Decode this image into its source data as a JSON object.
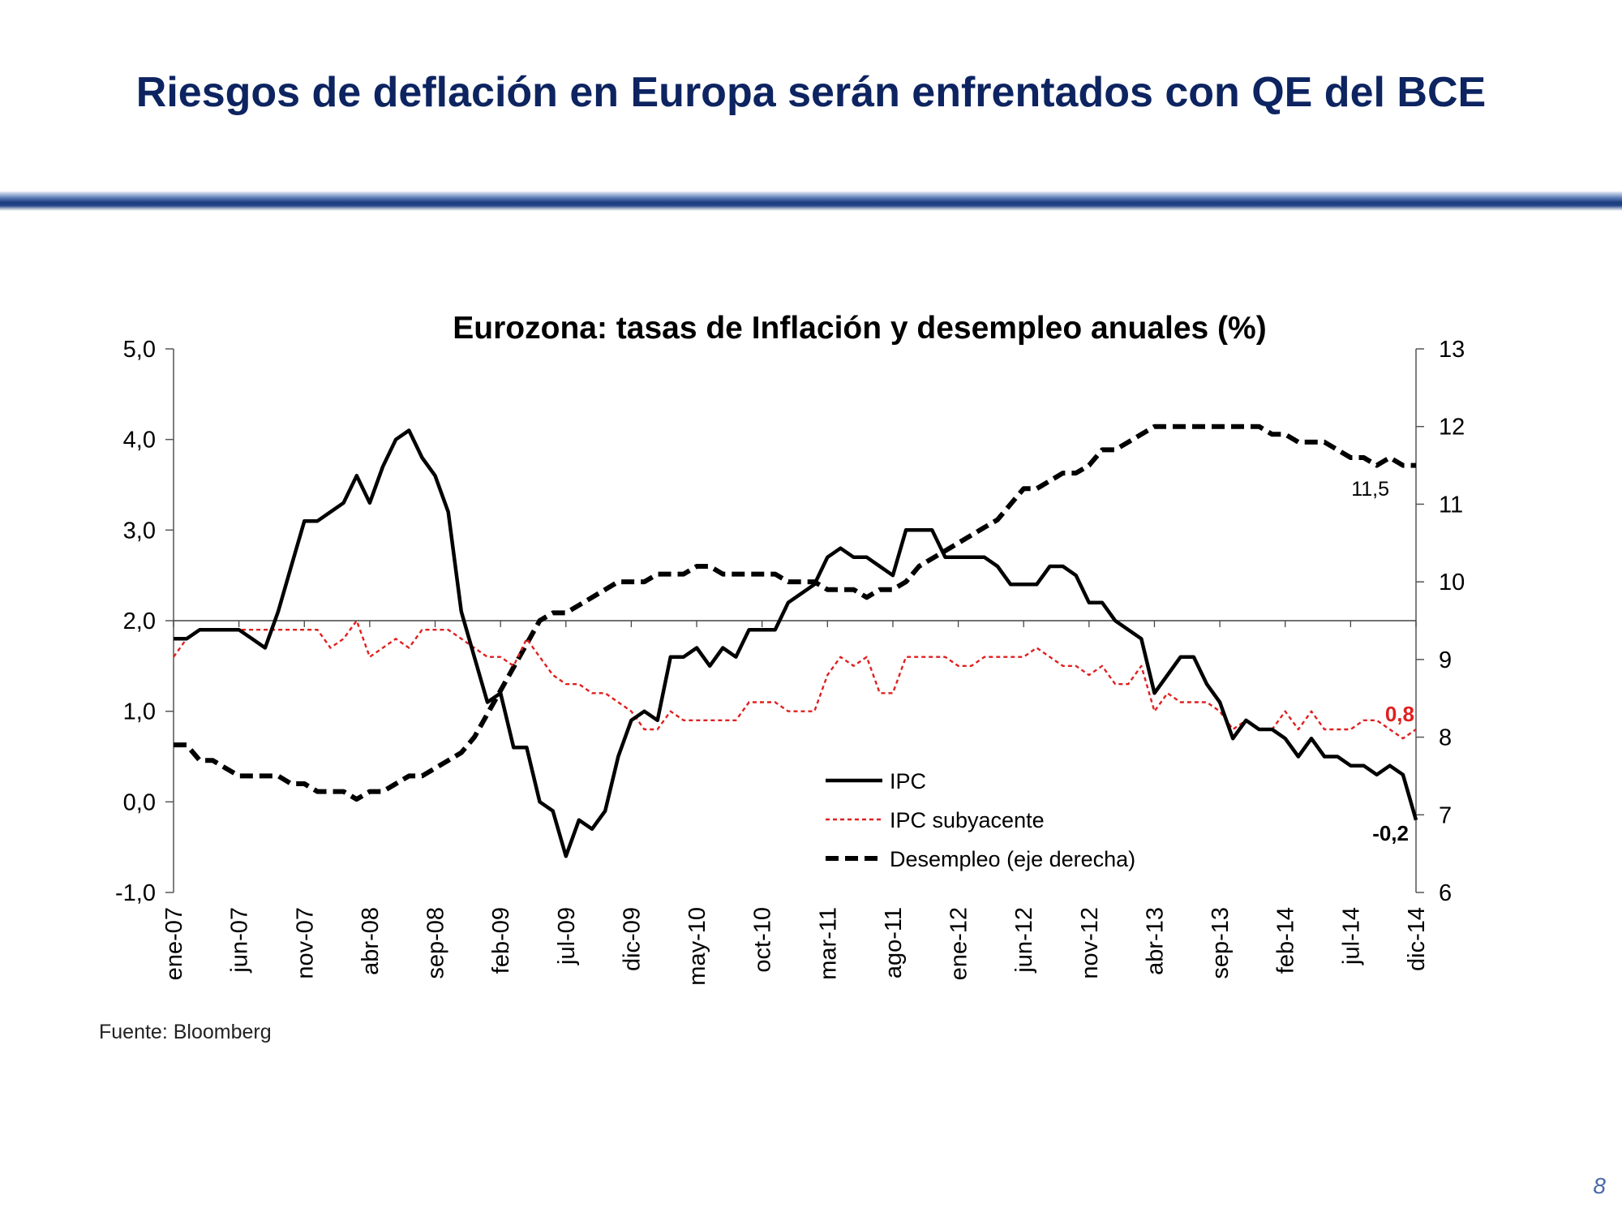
{
  "slide": {
    "title": "Riesgos de deflación en Europa serán enfrentados con QE del BCE",
    "source": "Fuente: Bloomberg",
    "page_number": "8"
  },
  "colors": {
    "title": "#0d2461",
    "ipc": "#000000",
    "ipc_subyacente": "#e02020",
    "desempleo": "#000000"
  },
  "chart_data": {
    "type": "line",
    "title": "Eurozona: tasas de Inflación y desempleo anuales (%)",
    "start": "ene-07",
    "end": "dic-14",
    "frequency": "monthly",
    "x_tick_labels": [
      "ene-07",
      "jun-07",
      "nov-07",
      "abr-08",
      "sep-08",
      "feb-09",
      "jul-09",
      "dic-09",
      "may-10",
      "oct-10",
      "mar-11",
      "ago-11",
      "ene-12",
      "jun-12",
      "nov-12",
      "abr-13",
      "sep-13",
      "feb-14",
      "jul-14",
      "dic-14"
    ],
    "left_axis": {
      "min": -1.0,
      "max": 5.0,
      "ticks": [
        "5,0",
        "4,0",
        "3,0",
        "2,0",
        "1,0",
        "0,0",
        "-1,0"
      ],
      "crossing_value": 2.0
    },
    "right_axis": {
      "min": 6,
      "max": 13,
      "ticks": [
        "13",
        "12",
        "11",
        "10",
        "9",
        "8",
        "7",
        "6"
      ]
    },
    "legend_position": "lower-center",
    "series": [
      {
        "name": "IPC",
        "axis": "left",
        "style": "solid",
        "values": [
          1.8,
          1.8,
          1.9,
          1.9,
          1.9,
          1.9,
          1.8,
          1.7,
          2.1,
          2.6,
          3.1,
          3.1,
          3.2,
          3.3,
          3.6,
          3.3,
          3.7,
          4.0,
          4.1,
          3.8,
          3.6,
          3.2,
          2.1,
          1.6,
          1.1,
          1.2,
          0.6,
          0.6,
          0.0,
          -0.1,
          -0.6,
          -0.2,
          -0.3,
          -0.1,
          0.5,
          0.9,
          1.0,
          0.9,
          1.6,
          1.6,
          1.7,
          1.5,
          1.7,
          1.6,
          1.9,
          1.9,
          1.9,
          2.2,
          2.3,
          2.4,
          2.7,
          2.8,
          2.7,
          2.7,
          2.6,
          2.5,
          3.0,
          3.0,
          3.0,
          2.7,
          2.7,
          2.7,
          2.7,
          2.6,
          2.4,
          2.4,
          2.4,
          2.6,
          2.6,
          2.5,
          2.2,
          2.2,
          2.0,
          1.9,
          1.8,
          1.2,
          1.4,
          1.6,
          1.6,
          1.3,
          1.1,
          0.7,
          0.9,
          0.8,
          0.8,
          0.7,
          0.5,
          0.7,
          0.5,
          0.5,
          0.4,
          0.4,
          0.3,
          0.4,
          0.3,
          -0.2
        ]
      },
      {
        "name": "IPC subyacente",
        "axis": "left",
        "style": "dotted",
        "values": [
          1.6,
          1.8,
          1.9,
          1.9,
          1.9,
          1.9,
          1.9,
          1.9,
          1.9,
          1.9,
          1.9,
          1.9,
          1.7,
          1.8,
          2.0,
          1.6,
          1.7,
          1.8,
          1.7,
          1.9,
          1.9,
          1.9,
          1.8,
          1.7,
          1.6,
          1.6,
          1.5,
          1.8,
          1.6,
          1.4,
          1.3,
          1.3,
          1.2,
          1.2,
          1.1,
          1.0,
          0.8,
          0.8,
          1.0,
          0.9,
          0.9,
          0.9,
          0.9,
          0.9,
          1.1,
          1.1,
          1.1,
          1.0,
          1.0,
          1.0,
          1.4,
          1.6,
          1.5,
          1.6,
          1.2,
          1.2,
          1.6,
          1.6,
          1.6,
          1.6,
          1.5,
          1.5,
          1.6,
          1.6,
          1.6,
          1.6,
          1.7,
          1.6,
          1.5,
          1.5,
          1.4,
          1.5,
          1.3,
          1.3,
          1.5,
          1.0,
          1.2,
          1.1,
          1.1,
          1.1,
          1.0,
          0.8,
          0.9,
          0.8,
          0.8,
          1.0,
          0.8,
          1.0,
          0.8,
          0.8,
          0.8,
          0.9,
          0.9,
          0.8,
          0.7,
          0.8
        ]
      },
      {
        "name": "Desempleo (eje derecha)",
        "axis": "right",
        "style": "dashed",
        "values": [
          7.9,
          7.9,
          7.7,
          7.7,
          7.6,
          7.5,
          7.5,
          7.5,
          7.5,
          7.4,
          7.4,
          7.3,
          7.3,
          7.3,
          7.2,
          7.3,
          7.3,
          7.4,
          7.5,
          7.5,
          7.6,
          7.7,
          7.8,
          8.0,
          8.3,
          8.6,
          8.9,
          9.2,
          9.5,
          9.6,
          9.6,
          9.7,
          9.8,
          9.9,
          10.0,
          10.0,
          10.0,
          10.1,
          10.1,
          10.1,
          10.2,
          10.2,
          10.1,
          10.1,
          10.1,
          10.1,
          10.1,
          10.0,
          10.0,
          10.0,
          9.9,
          9.9,
          9.9,
          9.8,
          9.9,
          9.9,
          10.0,
          10.2,
          10.3,
          10.4,
          10.5,
          10.6,
          10.7,
          10.8,
          11.0,
          11.2,
          11.2,
          11.3,
          11.4,
          11.4,
          11.5,
          11.7,
          11.7,
          11.8,
          11.9,
          12.0,
          12.0,
          12.0,
          12.0,
          12.0,
          12.0,
          12.0,
          12.0,
          12.0,
          11.9,
          11.9,
          11.8,
          11.8,
          11.8,
          11.7,
          11.6,
          11.6,
          11.5,
          11.6,
          11.5,
          11.5
        ]
      }
    ],
    "annotations": [
      {
        "series": "Desempleo (eje derecha)",
        "text": "11,5"
      },
      {
        "series": "IPC subyacente",
        "text": "0,8"
      },
      {
        "series": "IPC",
        "text": "-0,2"
      }
    ]
  }
}
